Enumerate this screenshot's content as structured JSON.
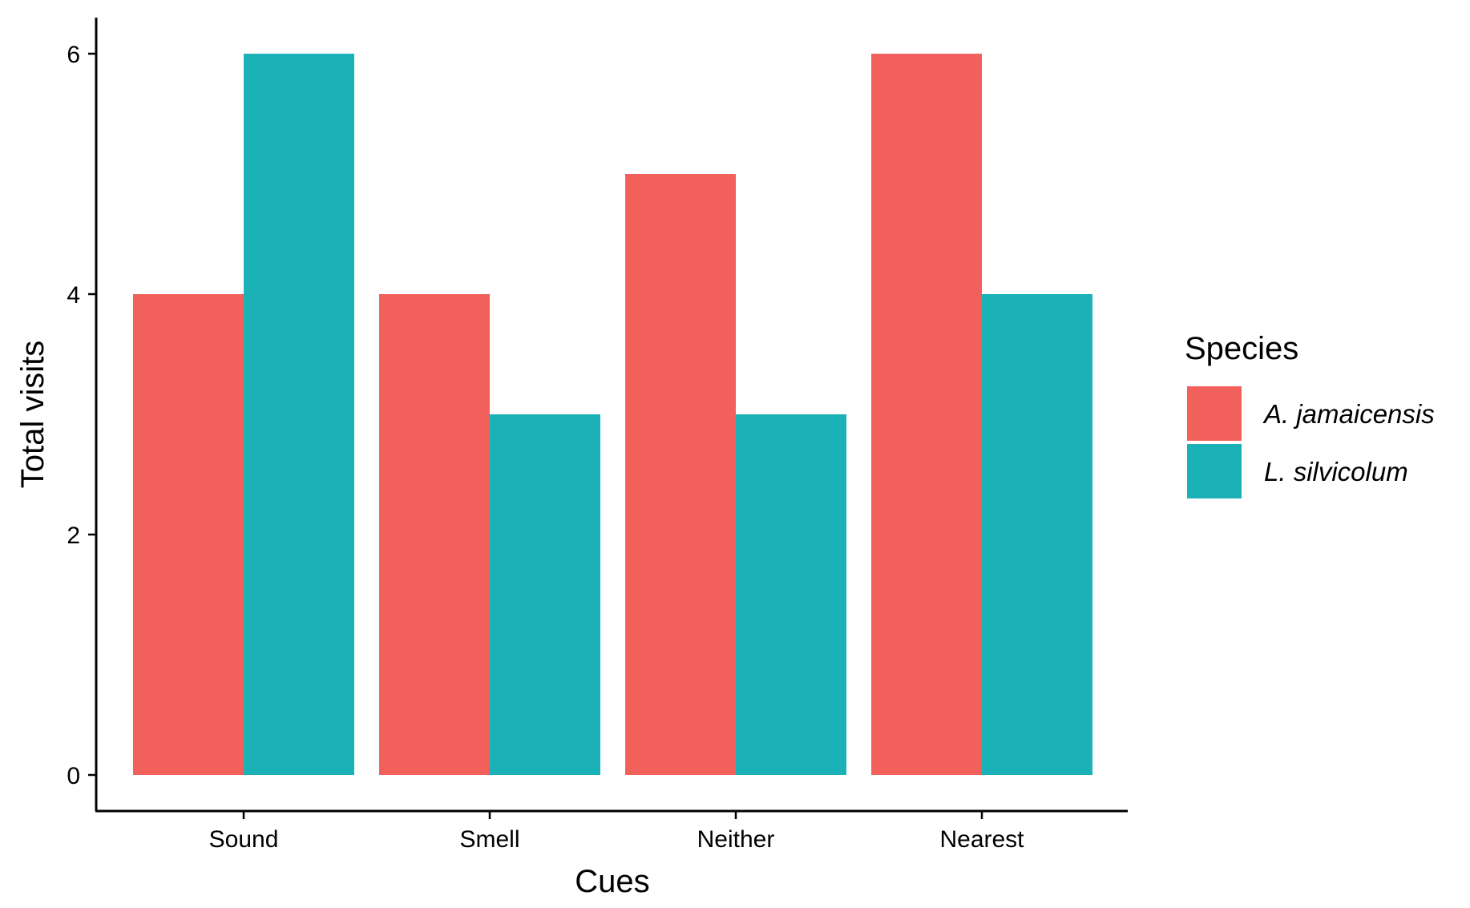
{
  "chart_data": {
    "type": "bar",
    "title": "",
    "xlabel": "Cues",
    "ylabel": "Total visits",
    "categories": [
      "Sound",
      "Smell",
      "Neither",
      "Nearest"
    ],
    "series": [
      {
        "name": "A. jamaicensis",
        "color": "#F2605C",
        "values": [
          4,
          4,
          5,
          6
        ]
      },
      {
        "name": "L. silvicolum",
        "color": "#1AB2B6",
        "values": [
          6,
          3,
          3,
          4
        ]
      }
    ],
    "yticks": [
      0,
      2,
      4,
      6
    ],
    "ylim": [
      -0.3,
      6.3
    ],
    "grid": false,
    "legend": {
      "title": "Species",
      "position": "right"
    }
  }
}
